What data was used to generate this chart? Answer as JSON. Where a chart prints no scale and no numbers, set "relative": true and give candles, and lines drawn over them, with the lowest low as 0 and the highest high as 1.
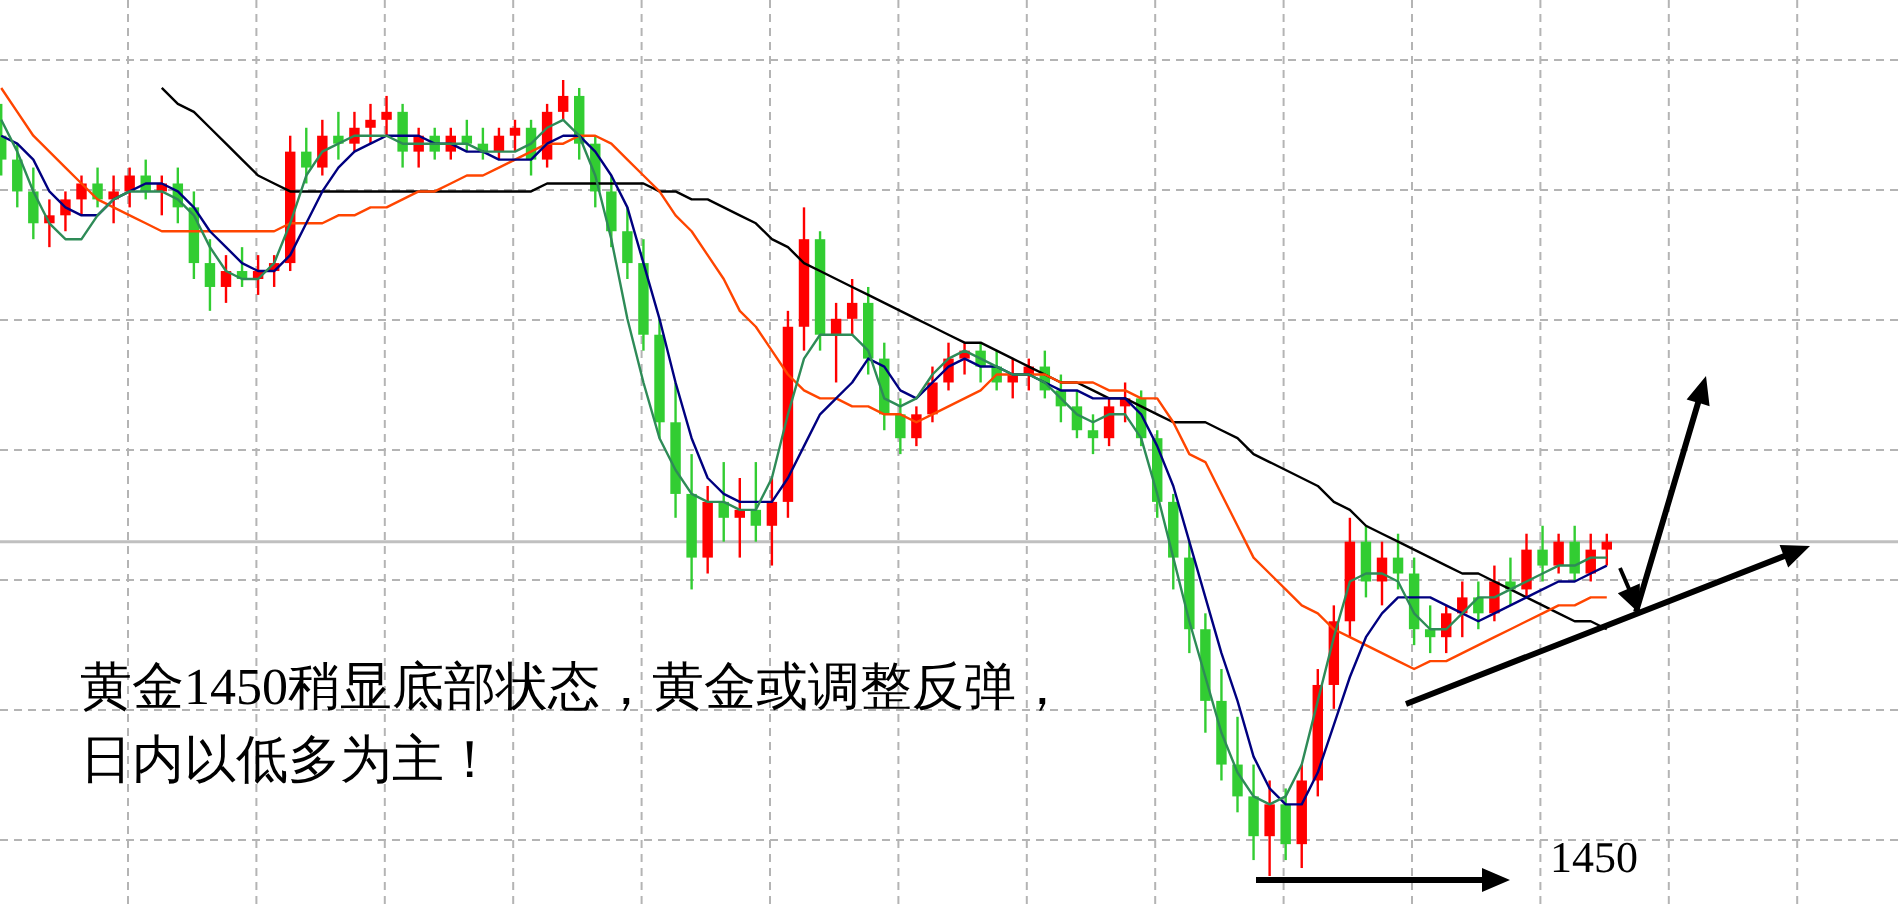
{
  "chart_data": {
    "type": "candlestick",
    "relative": true,
    "grid": true,
    "categories": [
      null,
      null,
      null,
      null,
      null,
      null,
      null,
      null,
      null,
      null,
      null,
      null,
      null,
      null,
      null,
      null,
      null,
      null,
      null,
      null,
      null,
      null,
      null,
      null,
      null,
      null,
      null,
      null,
      null,
      null,
      null,
      null,
      null,
      null,
      null,
      null,
      null,
      null,
      null,
      null,
      null,
      null,
      null,
      null,
      null,
      null,
      null,
      null,
      null,
      null,
      null,
      null,
      null,
      null,
      null,
      null,
      null,
      null,
      null,
      null,
      null,
      null,
      null,
      null,
      null,
      null,
      null,
      null,
      null,
      null,
      null,
      null,
      null,
      null,
      null,
      null,
      null,
      null,
      null,
      null,
      null,
      null,
      null,
      null,
      null,
      null,
      null,
      null,
      null,
      null,
      null,
      null,
      null,
      null,
      null,
      null,
      null,
      null,
      null,
      null,
      null
    ],
    "series": [
      {
        "type": "line",
        "color": "#000000",
        "values": [
          null,
          null,
          null,
          null,
          null,
          null,
          null,
          null,
          null,
          null,
          0.99,
          0.97,
          0.96,
          0.94,
          0.92,
          0.9,
          0.88,
          0.87,
          0.86,
          0.86,
          0.86,
          0.86,
          0.86,
          0.86,
          0.86,
          0.86,
          0.86,
          0.86,
          0.86,
          0.86,
          0.86,
          0.86,
          0.86,
          0.86,
          0.87,
          0.87,
          0.87,
          0.87,
          0.87,
          0.87,
          0.87,
          0.86,
          0.86,
          0.85,
          0.85,
          0.84,
          0.83,
          0.82,
          0.8,
          0.79,
          0.77,
          0.76,
          0.75,
          0.74,
          0.73,
          0.72,
          0.71,
          0.7,
          0.69,
          0.68,
          0.67,
          0.67,
          0.66,
          0.65,
          0.64,
          0.63,
          0.62,
          0.62,
          0.61,
          0.6,
          0.6,
          0.59,
          0.58,
          0.57,
          0.57,
          0.57,
          0.56,
          0.55,
          0.53,
          0.52,
          0.51,
          0.5,
          0.49,
          0.47,
          0.46,
          0.44,
          0.43,
          0.42,
          0.41,
          0.4,
          0.39,
          0.38,
          0.38,
          0.37,
          0.36,
          0.35,
          0.34,
          0.33,
          0.32,
          0.32,
          0.31
        ]
      },
      {
        "type": "line",
        "color": "#ff4500",
        "values": [
          0.99,
          0.96,
          0.93,
          0.91,
          0.89,
          0.87,
          0.85,
          0.84,
          0.83,
          0.82,
          0.81,
          0.81,
          0.81,
          0.81,
          0.81,
          0.81,
          0.81,
          0.81,
          0.82,
          0.82,
          0.82,
          0.83,
          0.83,
          0.84,
          0.84,
          0.85,
          0.86,
          0.86,
          0.87,
          0.88,
          0.88,
          0.89,
          0.9,
          0.91,
          0.92,
          0.92,
          0.93,
          0.93,
          0.92,
          0.9,
          0.88,
          0.86,
          0.83,
          0.81,
          0.78,
          0.75,
          0.71,
          0.69,
          0.66,
          0.63,
          0.61,
          0.6,
          0.6,
          0.59,
          0.59,
          0.58,
          0.58,
          0.57,
          0.58,
          0.59,
          0.6,
          0.61,
          0.63,
          0.63,
          0.63,
          0.63,
          0.62,
          0.62,
          0.62,
          0.61,
          0.61,
          0.6,
          0.6,
          0.57,
          0.53,
          0.52,
          0.48,
          0.44,
          0.4,
          0.38,
          0.36,
          0.34,
          0.33,
          0.31,
          0.3,
          0.29,
          0.28,
          0.27,
          0.26,
          0.27,
          0.27,
          0.28,
          0.29,
          0.3,
          0.31,
          0.32,
          0.33,
          0.34,
          0.34,
          0.35,
          0.35
        ]
      },
      {
        "type": "line",
        "color": "#000080",
        "values": [
          0.93,
          0.92,
          0.9,
          0.86,
          0.84,
          0.83,
          0.83,
          0.85,
          0.86,
          0.87,
          0.87,
          0.86,
          0.84,
          0.81,
          0.79,
          0.77,
          0.76,
          0.76,
          0.78,
          0.82,
          0.86,
          0.89,
          0.91,
          0.92,
          0.93,
          0.93,
          0.93,
          0.92,
          0.92,
          0.91,
          0.91,
          0.9,
          0.9,
          0.9,
          0.92,
          0.93,
          0.93,
          0.91,
          0.88,
          0.84,
          0.77,
          0.7,
          0.62,
          0.55,
          0.5,
          0.48,
          0.47,
          0.47,
          0.47,
          0.5,
          0.54,
          0.58,
          0.6,
          0.62,
          0.65,
          0.64,
          0.61,
          0.6,
          0.62,
          0.64,
          0.65,
          0.64,
          0.64,
          0.63,
          0.63,
          0.62,
          0.61,
          0.61,
          0.6,
          0.6,
          0.6,
          0.58,
          0.54,
          0.49,
          0.42,
          0.35,
          0.28,
          0.22,
          0.15,
          0.11,
          0.09,
          0.09,
          0.13,
          0.19,
          0.25,
          0.3,
          0.33,
          0.35,
          0.35,
          0.35,
          0.34,
          0.33,
          0.32,
          0.33,
          0.34,
          0.35,
          0.36,
          0.37,
          0.37,
          0.38,
          0.39
        ]
      },
      {
        "type": "line",
        "color": "#2e8b57",
        "values": [
          0.95,
          0.91,
          0.86,
          0.82,
          0.8,
          0.8,
          0.83,
          0.85,
          0.86,
          0.86,
          0.86,
          0.85,
          0.83,
          0.79,
          0.76,
          0.75,
          0.75,
          0.77,
          0.82,
          0.88,
          0.91,
          0.92,
          0.93,
          0.93,
          0.93,
          0.92,
          0.92,
          0.92,
          0.92,
          0.92,
          0.91,
          0.91,
          0.91,
          0.92,
          0.94,
          0.95,
          0.93,
          0.88,
          0.8,
          0.7,
          0.62,
          0.55,
          0.51,
          0.48,
          0.47,
          0.47,
          0.46,
          0.46,
          0.5,
          0.58,
          0.65,
          0.68,
          0.68,
          0.68,
          0.66,
          0.6,
          0.59,
          0.6,
          0.63,
          0.65,
          0.66,
          0.65,
          0.64,
          0.63,
          0.63,
          0.62,
          0.6,
          0.58,
          0.57,
          0.58,
          0.58,
          0.55,
          0.48,
          0.4,
          0.32,
          0.25,
          0.18,
          0.13,
          0.1,
          0.09,
          0.1,
          0.14,
          0.22,
          0.3,
          0.37,
          0.38,
          0.38,
          0.37,
          0.33,
          0.31,
          0.31,
          0.33,
          0.35,
          0.35,
          0.36,
          0.37,
          0.38,
          0.39,
          0.39,
          0.4,
          0.4
        ]
      },
      {
        "ohlc": [
          [
            0.93,
            0.97,
            0.88,
            0.9
          ],
          [
            0.9,
            0.92,
            0.84,
            0.86
          ],
          [
            0.86,
            0.89,
            0.8,
            0.82
          ],
          [
            0.82,
            0.85,
            0.79,
            0.83
          ],
          [
            0.83,
            0.86,
            0.81,
            0.85
          ],
          [
            0.85,
            0.88,
            0.83,
            0.87
          ],
          [
            0.87,
            0.89,
            0.84,
            0.85
          ],
          [
            0.85,
            0.88,
            0.82,
            0.86
          ],
          [
            0.86,
            0.89,
            0.84,
            0.88
          ],
          [
            0.88,
            0.9,
            0.85,
            0.86
          ],
          [
            0.86,
            0.88,
            0.83,
            0.87
          ],
          [
            0.87,
            0.89,
            0.82,
            0.84
          ],
          [
            0.84,
            0.86,
            0.75,
            0.77
          ],
          [
            0.77,
            0.8,
            0.71,
            0.74
          ],
          [
            0.74,
            0.78,
            0.72,
            0.76
          ],
          [
            0.76,
            0.79,
            0.74,
            0.75
          ],
          [
            0.75,
            0.78,
            0.73,
            0.76
          ],
          [
            0.76,
            0.78,
            0.74,
            0.77
          ],
          [
            0.77,
            0.93,
            0.76,
            0.91
          ],
          [
            0.91,
            0.94,
            0.87,
            0.89
          ],
          [
            0.89,
            0.95,
            0.88,
            0.93
          ],
          [
            0.93,
            0.96,
            0.9,
            0.92
          ],
          [
            0.92,
            0.96,
            0.91,
            0.94
          ],
          [
            0.94,
            0.97,
            0.92,
            0.95
          ],
          [
            0.95,
            0.98,
            0.93,
            0.96
          ],
          [
            0.96,
            0.97,
            0.89,
            0.91
          ],
          [
            0.91,
            0.94,
            0.89,
            0.93
          ],
          [
            0.93,
            0.94,
            0.9,
            0.91
          ],
          [
            0.91,
            0.94,
            0.9,
            0.93
          ],
          [
            0.93,
            0.95,
            0.91,
            0.92
          ],
          [
            0.92,
            0.94,
            0.9,
            0.91
          ],
          [
            0.91,
            0.94,
            0.9,
            0.93
          ],
          [
            0.93,
            0.95,
            0.91,
            0.94
          ],
          [
            0.94,
            0.95,
            0.88,
            0.9
          ],
          [
            0.9,
            0.97,
            0.89,
            0.96
          ],
          [
            0.96,
            1.0,
            0.95,
            0.98
          ],
          [
            0.98,
            0.99,
            0.9,
            0.92
          ],
          [
            0.92,
            0.93,
            0.84,
            0.86
          ],
          [
            0.86,
            0.88,
            0.79,
            0.81
          ],
          [
            0.81,
            0.84,
            0.75,
            0.77
          ],
          [
            0.77,
            0.8,
            0.66,
            0.68
          ],
          [
            0.68,
            0.7,
            0.55,
            0.57
          ],
          [
            0.57,
            0.62,
            0.45,
            0.48
          ],
          [
            0.48,
            0.53,
            0.36,
            0.4
          ],
          [
            0.4,
            0.49,
            0.38,
            0.47
          ],
          [
            0.47,
            0.52,
            0.42,
            0.45
          ],
          [
            0.45,
            0.5,
            0.4,
            0.46
          ],
          [
            0.46,
            0.52,
            0.42,
            0.44
          ],
          [
            0.44,
            0.5,
            0.39,
            0.47
          ],
          [
            0.47,
            0.71,
            0.45,
            0.69
          ],
          [
            0.69,
            0.84,
            0.66,
            0.8
          ],
          [
            0.8,
            0.81,
            0.66,
            0.68
          ],
          [
            0.68,
            0.72,
            0.62,
            0.7
          ],
          [
            0.7,
            0.75,
            0.68,
            0.72
          ],
          [
            0.72,
            0.74,
            0.63,
            0.65
          ],
          [
            0.65,
            0.67,
            0.56,
            0.58
          ],
          [
            0.58,
            0.6,
            0.53,
            0.55
          ],
          [
            0.55,
            0.59,
            0.54,
            0.58
          ],
          [
            0.58,
            0.64,
            0.57,
            0.62
          ],
          [
            0.62,
            0.67,
            0.61,
            0.65
          ],
          [
            0.65,
            0.67,
            0.63,
            0.66
          ],
          [
            0.66,
            0.67,
            0.62,
            0.64
          ],
          [
            0.64,
            0.66,
            0.61,
            0.62
          ],
          [
            0.62,
            0.65,
            0.6,
            0.63
          ],
          [
            0.63,
            0.65,
            0.61,
            0.64
          ],
          [
            0.64,
            0.66,
            0.6,
            0.61
          ],
          [
            0.61,
            0.63,
            0.57,
            0.59
          ],
          [
            0.59,
            0.61,
            0.55,
            0.56
          ],
          [
            0.56,
            0.58,
            0.53,
            0.55
          ],
          [
            0.55,
            0.6,
            0.54,
            0.59
          ],
          [
            0.59,
            0.62,
            0.57,
            0.6
          ],
          [
            0.6,
            0.61,
            0.54,
            0.55
          ],
          [
            0.55,
            0.56,
            0.45,
            0.47
          ],
          [
            0.47,
            0.48,
            0.36,
            0.4
          ],
          [
            0.4,
            0.42,
            0.28,
            0.31
          ],
          [
            0.31,
            0.33,
            0.18,
            0.22
          ],
          [
            0.22,
            0.26,
            0.12,
            0.14
          ],
          [
            0.14,
            0.2,
            0.08,
            0.1
          ],
          [
            0.1,
            0.14,
            0.02,
            0.05
          ],
          [
            0.05,
            0.12,
            0.0,
            0.09
          ],
          [
            0.09,
            0.11,
            0.02,
            0.04
          ],
          [
            0.04,
            0.14,
            0.01,
            0.12
          ],
          [
            0.12,
            0.26,
            0.1,
            0.24
          ],
          [
            0.24,
            0.34,
            0.21,
            0.32
          ],
          [
            0.32,
            0.45,
            0.3,
            0.42
          ],
          [
            0.42,
            0.44,
            0.35,
            0.37
          ],
          [
            0.37,
            0.42,
            0.34,
            0.4
          ],
          [
            0.4,
            0.43,
            0.36,
            0.38
          ],
          [
            0.38,
            0.4,
            0.29,
            0.31
          ],
          [
            0.31,
            0.34,
            0.28,
            0.3
          ],
          [
            0.3,
            0.34,
            0.28,
            0.33
          ],
          [
            0.33,
            0.37,
            0.3,
            0.35
          ],
          [
            0.35,
            0.37,
            0.31,
            0.33
          ],
          [
            0.33,
            0.39,
            0.32,
            0.37
          ],
          [
            0.37,
            0.4,
            0.34,
            0.36
          ],
          [
            0.36,
            0.43,
            0.35,
            0.41
          ],
          [
            0.41,
            0.44,
            0.37,
            0.39
          ],
          [
            0.39,
            0.43,
            0.38,
            0.42
          ],
          [
            0.42,
            0.44,
            0.37,
            0.38
          ],
          [
            0.38,
            0.43,
            0.37,
            0.41
          ],
          [
            0.41,
            0.43,
            0.39,
            0.42
          ]
        ],
        "colors": [
          "#32cd32",
          "#32cd32",
          "#32cd32",
          "#ff0000",
          "#ff0000",
          "#ff0000",
          "#32cd32",
          "#ff0000",
          "#ff0000",
          "#32cd32",
          "#ff0000",
          "#32cd32",
          "#32cd32",
          "#32cd32",
          "#ff0000",
          "#32cd32",
          "#ff0000",
          "#ff0000",
          "#ff0000",
          "#32cd32",
          "#ff0000",
          "#32cd32",
          "#ff0000",
          "#ff0000",
          "#ff0000",
          "#32cd32",
          "#ff0000",
          "#32cd32",
          "#ff0000",
          "#32cd32",
          "#32cd32",
          "#ff0000",
          "#ff0000",
          "#32cd32",
          "#ff0000",
          "#ff0000",
          "#32cd32",
          "#32cd32",
          "#32cd32",
          "#32cd32",
          "#32cd32",
          "#32cd32",
          "#32cd32",
          "#32cd32",
          "#ff0000",
          "#32cd32",
          "#ff0000",
          "#32cd32",
          "#ff0000",
          "#ff0000",
          "#ff0000",
          "#32cd32",
          "#ff0000",
          "#ff0000",
          "#32cd32",
          "#32cd32",
          "#32cd32",
          "#ff0000",
          "#ff0000",
          "#ff0000",
          "#ff0000",
          "#32cd32",
          "#32cd32",
          "#ff0000",
          "#ff0000",
          "#32cd32",
          "#32cd32",
          "#32cd32",
          "#32cd32",
          "#ff0000",
          "#ff0000",
          "#32cd32",
          "#32cd32",
          "#32cd32",
          "#32cd32",
          "#32cd32",
          "#32cd32",
          "#32cd32",
          "#32cd32",
          "#ff0000",
          "#32cd32",
          "#ff0000",
          "#ff0000",
          "#ff0000",
          "#ff0000",
          "#32cd32",
          "#ff0000",
          "#32cd32",
          "#32cd32",
          "#32cd32",
          "#ff0000",
          "#ff0000",
          "#32cd32",
          "#ff0000",
          "#32cd32",
          "#ff0000",
          "#32cd32",
          "#ff0000",
          "#32cd32",
          "#ff0000",
          "#ff0000"
        ]
      }
    ],
    "ref_lines": [
      {
        "axis": "y",
        "value": 0.42,
        "color": "#c0c0c0"
      }
    ],
    "annotations": [
      "黄金1450稍显底部状态，黄金或调整反弹，日内以低多为主！",
      "1450"
    ]
  }
}
